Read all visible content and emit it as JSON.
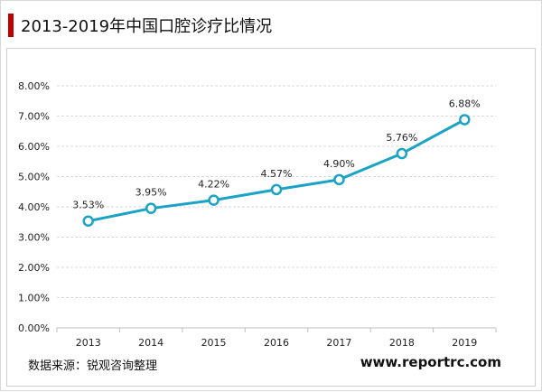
{
  "header": {
    "title": "2013-2019年中国口腔诊疗比情况"
  },
  "footer": {
    "source": "数据来源：锐观咨询整理",
    "url": "www.reportrc.com"
  },
  "colors": {
    "accent": "#c00000",
    "series": "#1ba3c6",
    "grid": "#d9d9d9",
    "axis": "#bfbfbf"
  },
  "chart_data": {
    "type": "line",
    "title": "",
    "xlabel": "",
    "ylabel": "",
    "categories": [
      "2013",
      "2014",
      "2015",
      "2016",
      "2017",
      "2018",
      "2019"
    ],
    "series": [
      {
        "values": [
          3.53,
          3.95,
          4.22,
          4.57,
          4.9,
          5.76,
          6.88
        ],
        "data_labels": [
          "3.53%",
          "3.95%",
          "4.22%",
          "4.57%",
          "4.90%",
          "5.76%",
          "6.88%"
        ]
      }
    ],
    "ylim": [
      0,
      8
    ],
    "yticks": [
      0,
      1,
      2,
      3,
      4,
      5,
      6,
      7,
      8
    ],
    "ytick_labels": [
      "0.00%",
      "1.00%",
      "2.00%",
      "3.00%",
      "4.00%",
      "5.00%",
      "6.00%",
      "7.00%",
      "8.00%"
    ],
    "grid": true,
    "legend": "none",
    "marker": "open-circle"
  }
}
